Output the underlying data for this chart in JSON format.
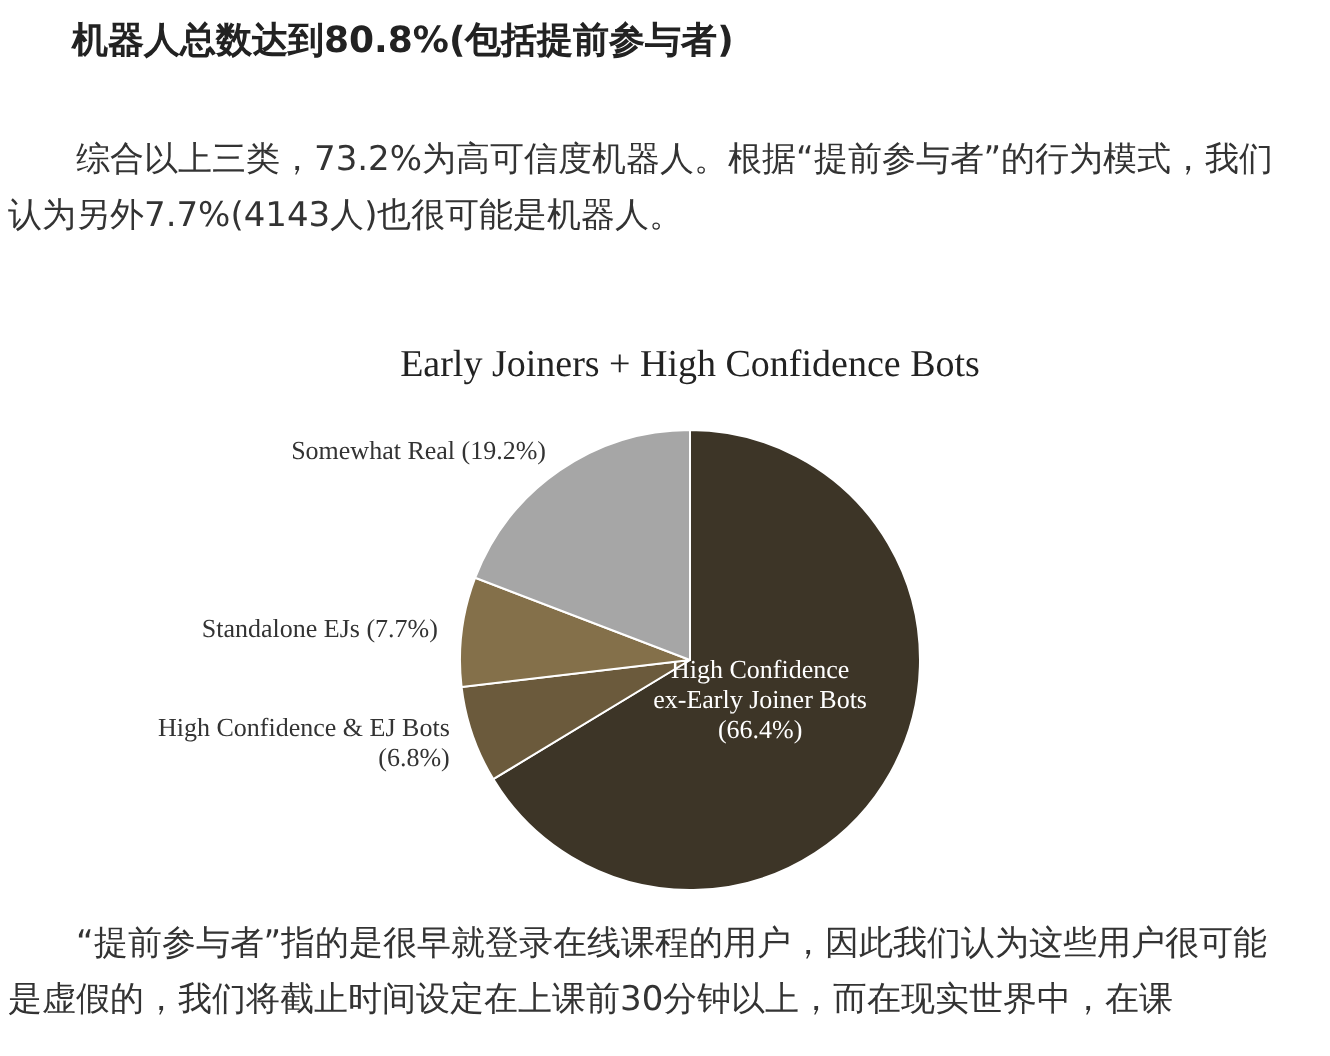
{
  "chart_data": {
    "type": "pie",
    "title": "Early Joiners + High Confidence Bots",
    "categories": [
      "High Confidence ex-Early Joiner Bots",
      "High Confidence & EJ Bots",
      "Standalone EJs",
      "Somewhat Real"
    ],
    "values": [
      66.4,
      6.8,
      7.7,
      19.2
    ],
    "value_labels": [
      "(66.4%)",
      "(6.8%)",
      "(7.7%)",
      "(19.2%)"
    ],
    "colors": [
      "#3d3527",
      "#6b5a3c",
      "#84704a",
      "#a6a6a6"
    ],
    "annotations": [
      "机器人总数达到80.8%(包括提前参与者)",
      "综合以上三类，73.2%为高可信度机器人。根据“提前参与者”的行为模式，我们认为另外7.7%(4143人)也很可能是机器人。",
      "“提前参与者”指的是很早就登录在线课程的用户，因此我们认为这些用户很可能是虚假的，我们将截止时间设定在上课前30分钟以上，而在现实世界中，在课"
    ]
  }
}
